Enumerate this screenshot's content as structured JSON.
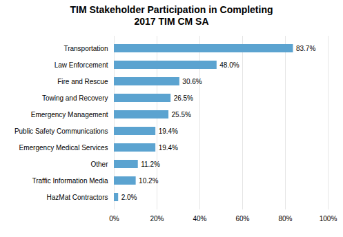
{
  "chart_data": {
    "type": "bar",
    "orientation": "horizontal",
    "title": "TIM Stakeholder Participation in Completing\n2017 TIM CM SA",
    "categories": [
      "Transportation",
      "Law Enforcement",
      "Fire and Rescue",
      "Towing and Recovery",
      "Emergency Management",
      "Public Safety Communications",
      "Emergency Medical Services",
      "Other",
      "Traffic Information Media",
      "HazMat Contractors"
    ],
    "values": [
      83.7,
      48.0,
      30.6,
      26.5,
      25.5,
      19.4,
      19.4,
      11.2,
      10.2,
      2.0
    ],
    "value_labels": [
      "83.7%",
      "48.0%",
      "30.6%",
      "26.5%",
      "25.5%",
      "19.4%",
      "19.4%",
      "11.2%",
      "10.2%",
      "2.0%"
    ],
    "data_labels": true,
    "color": "#5ba3d0",
    "xlim": [
      0,
      100
    ],
    "xticks": [
      {
        "value": 0,
        "label": "0%"
      },
      {
        "value": 20,
        "label": "20%"
      },
      {
        "value": 40,
        "label": "40%"
      },
      {
        "value": 60,
        "label": "60%"
      },
      {
        "value": 80,
        "label": "80%"
      },
      {
        "value": 100,
        "label": "100%"
      }
    ],
    "grid": true
  }
}
